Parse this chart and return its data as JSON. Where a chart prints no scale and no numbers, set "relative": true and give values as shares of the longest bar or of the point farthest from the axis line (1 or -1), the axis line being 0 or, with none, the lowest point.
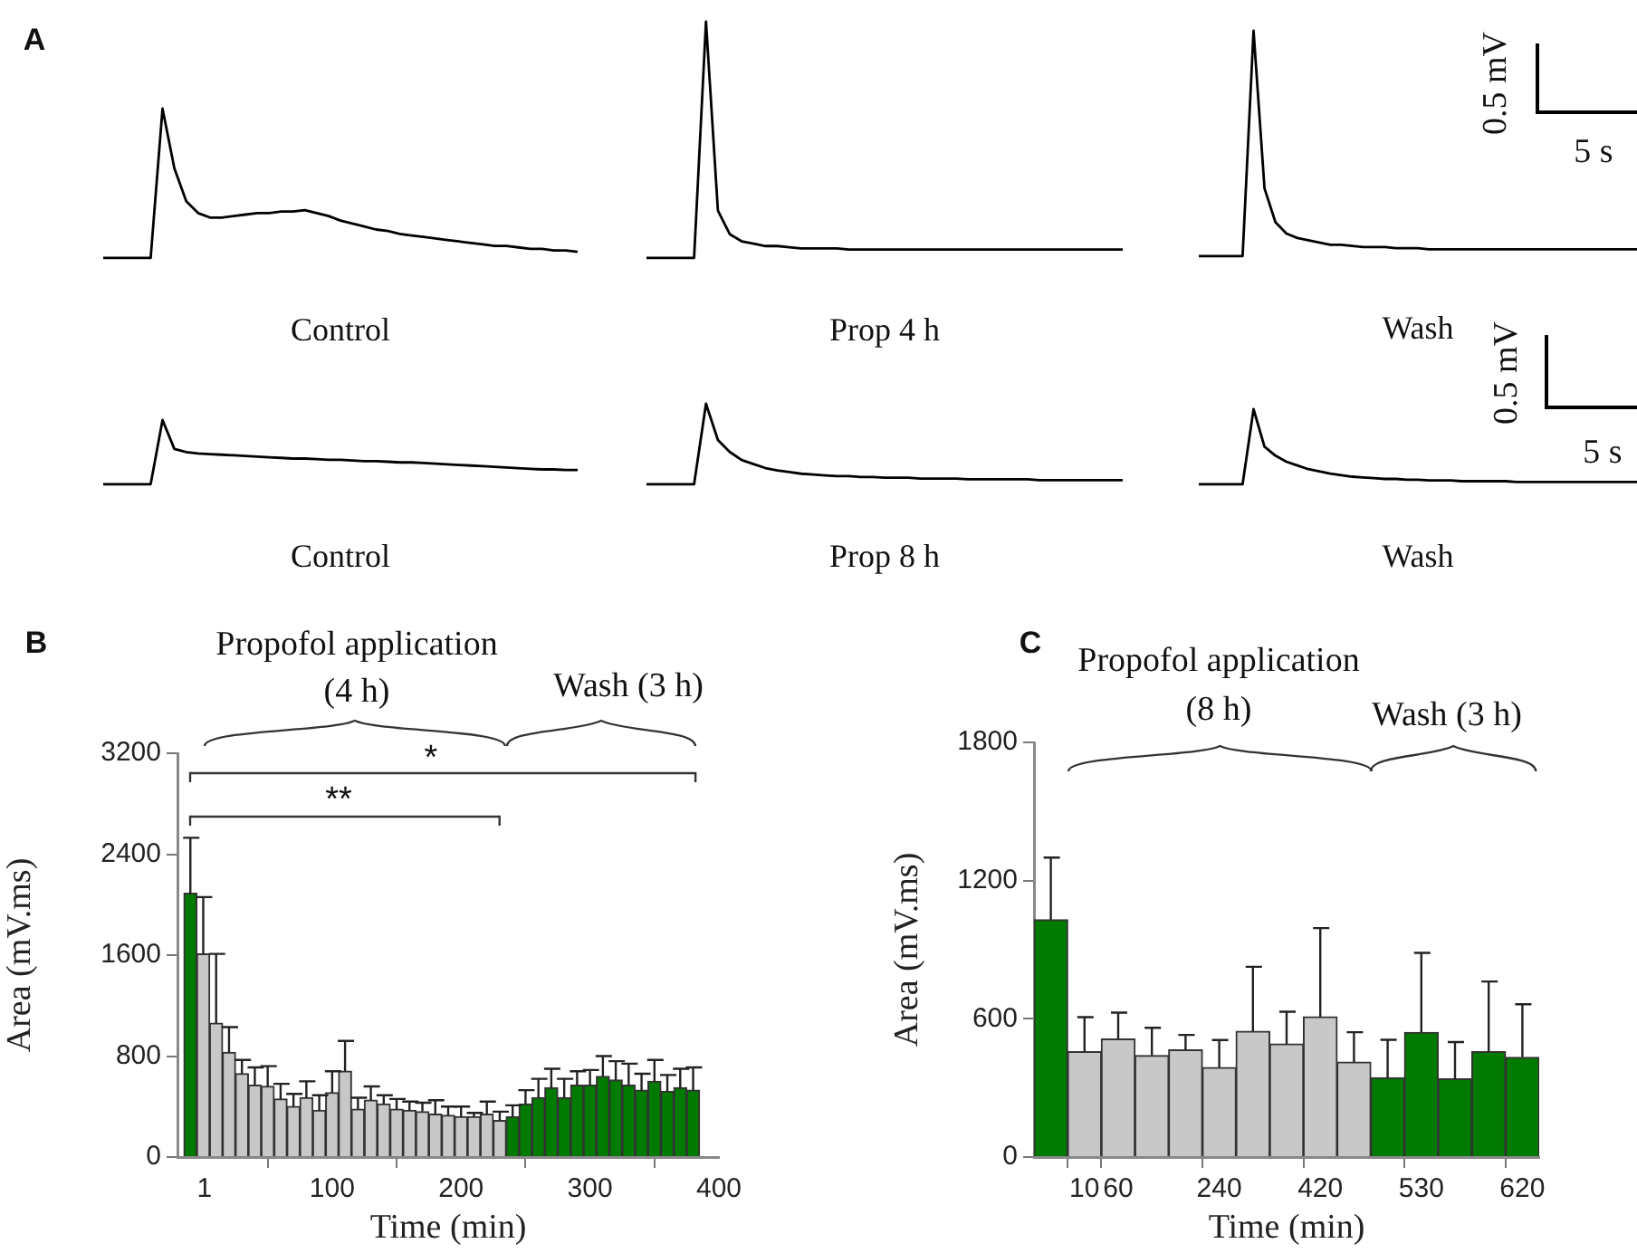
{
  "chart_data": [
    {
      "type": "line",
      "relative": true,
      "color": "#000000",
      "xlabel": "Control",
      "annotations": [
        "A"
      ],
      "categories": [
        null,
        null,
        null,
        null,
        null,
        null,
        null,
        null,
        null,
        null,
        null,
        null,
        null,
        null,
        null,
        null,
        null,
        null,
        null,
        null,
        null,
        null,
        null,
        null,
        null,
        null,
        null,
        null,
        null,
        null,
        null,
        null,
        null,
        null,
        null,
        null,
        null,
        null,
        null,
        null,
        null
      ],
      "values": [
        0,
        0,
        0,
        0,
        0,
        1,
        0.6,
        0.38,
        0.3,
        0.27,
        0.27,
        0.28,
        0.29,
        0.3,
        0.3,
        0.31,
        0.31,
        0.32,
        0.3,
        0.28,
        0.25,
        0.23,
        0.21,
        0.19,
        0.18,
        0.16,
        0.15,
        0.14,
        0.13,
        0.12,
        0.11,
        0.1,
        0.09,
        0.08,
        0.08,
        0.07,
        0.06,
        0.06,
        0.05,
        0.05,
        0.04
      ]
    },
    {
      "type": "line",
      "relative": true,
      "color": "#000000",
      "xlabel": "Prop 4 h",
      "categories": [
        null,
        null,
        null,
        null,
        null,
        null,
        null,
        null,
        null,
        null,
        null,
        null,
        null,
        null,
        null,
        null,
        null,
        null,
        null,
        null,
        null,
        null,
        null,
        null,
        null,
        null,
        null,
        null,
        null,
        null,
        null,
        null,
        null,
        null,
        null,
        null,
        null,
        null,
        null,
        null,
        null
      ],
      "values": [
        0,
        0,
        0,
        0,
        0,
        1,
        0.2,
        0.1,
        0.07,
        0.06,
        0.05,
        0.05,
        0.045,
        0.04,
        0.04,
        0.04,
        0.04,
        0.035,
        0.035,
        0.035,
        0.035,
        0.035,
        0.035,
        0.035,
        0.035,
        0.035,
        0.035,
        0.035,
        0.035,
        0.035,
        0.035,
        0.035,
        0.035,
        0.035,
        0.035,
        0.035,
        0.035,
        0.035,
        0.035,
        0.035,
        0.035
      ]
    },
    {
      "type": "line",
      "relative": true,
      "color": "#000000",
      "xlabel": "Wash",
      "annotations": [
        "0.5 mV",
        "5 s"
      ],
      "categories": [
        null,
        null,
        null,
        null,
        null,
        null,
        null,
        null,
        null,
        null,
        null,
        null,
        null,
        null,
        null,
        null,
        null,
        null,
        null,
        null,
        null,
        null,
        null,
        null,
        null,
        null,
        null,
        null,
        null,
        null,
        null,
        null,
        null,
        null,
        null,
        null,
        null,
        null,
        null,
        null,
        null
      ],
      "values": [
        0,
        0,
        0,
        0,
        0,
        1,
        0.3,
        0.15,
        0.1,
        0.08,
        0.07,
        0.06,
        0.05,
        0.05,
        0.045,
        0.04,
        0.04,
        0.04,
        0.035,
        0.035,
        0.035,
        0.03,
        0.03,
        0.03,
        0.03,
        0.03,
        0.03,
        0.03,
        0.03,
        0.03,
        0.03,
        0.03,
        0.03,
        0.03,
        0.03,
        0.03,
        0.03,
        0.03,
        0.03,
        0.03,
        0.03
      ]
    },
    {
      "type": "line",
      "relative": true,
      "color": "#000000",
      "xlabel": "Control",
      "categories": [
        null,
        null,
        null,
        null,
        null,
        null,
        null,
        null,
        null,
        null,
        null,
        null,
        null,
        null,
        null,
        null,
        null,
        null,
        null,
        null,
        null,
        null,
        null,
        null,
        null,
        null,
        null,
        null,
        null,
        null,
        null,
        null,
        null,
        null,
        null,
        null,
        null,
        null,
        null,
        null,
        null
      ],
      "values": [
        0,
        0,
        0,
        0,
        0,
        1,
        0.55,
        0.5,
        0.48,
        0.47,
        0.46,
        0.45,
        0.44,
        0.43,
        0.42,
        0.41,
        0.4,
        0.4,
        0.39,
        0.38,
        0.38,
        0.37,
        0.36,
        0.36,
        0.35,
        0.34,
        0.34,
        0.33,
        0.32,
        0.31,
        0.3,
        0.29,
        0.28,
        0.27,
        0.26,
        0.25,
        0.24,
        0.23,
        0.23,
        0.22,
        0.22
      ]
    },
    {
      "type": "line",
      "relative": true,
      "color": "#000000",
      "xlabel": "Prop 8 h",
      "categories": [
        null,
        null,
        null,
        null,
        null,
        null,
        null,
        null,
        null,
        null,
        null,
        null,
        null,
        null,
        null,
        null,
        null,
        null,
        null,
        null,
        null,
        null,
        null,
        null,
        null,
        null,
        null,
        null,
        null,
        null,
        null,
        null,
        null,
        null,
        null,
        null,
        null,
        null,
        null,
        null,
        null
      ],
      "values": [
        0,
        0,
        0,
        0,
        0,
        1,
        0.55,
        0.4,
        0.3,
        0.25,
        0.2,
        0.17,
        0.15,
        0.13,
        0.12,
        0.11,
        0.1,
        0.1,
        0.09,
        0.09,
        0.08,
        0.08,
        0.08,
        0.07,
        0.07,
        0.07,
        0.07,
        0.06,
        0.06,
        0.06,
        0.06,
        0.06,
        0.06,
        0.05,
        0.05,
        0.05,
        0.05,
        0.05,
        0.05,
        0.05,
        0.05
      ]
    },
    {
      "type": "line",
      "relative": true,
      "color": "#000000",
      "xlabel": "Wash",
      "annotations": [
        "0.5 mV",
        "5 s"
      ],
      "categories": [
        null,
        null,
        null,
        null,
        null,
        null,
        null,
        null,
        null,
        null,
        null,
        null,
        null,
        null,
        null,
        null,
        null,
        null,
        null,
        null,
        null,
        null,
        null,
        null,
        null,
        null,
        null,
        null,
        null,
        null,
        null,
        null,
        null,
        null,
        null,
        null,
        null,
        null,
        null,
        null,
        null
      ],
      "values": [
        0,
        0,
        0,
        0,
        0,
        1,
        0.5,
        0.38,
        0.3,
        0.25,
        0.2,
        0.17,
        0.14,
        0.12,
        0.1,
        0.09,
        0.08,
        0.07,
        0.07,
        0.06,
        0.06,
        0.05,
        0.05,
        0.05,
        0.04,
        0.04,
        0.04,
        0.04,
        0.04,
        0.03,
        0.03,
        0.03,
        0.03,
        0.03,
        0.03,
        0.03,
        0.03,
        0.03,
        0.03,
        0.03,
        0.03
      ]
    },
    {
      "type": "bar",
      "xlabel": "Time (min)",
      "ylabel": "Area (mV.ms)",
      "annotations": [
        "B",
        "Propofol application",
        "(4 h)",
        "Wash (3 h)",
        "*",
        "**"
      ],
      "x": [
        -10,
        0,
        10,
        20,
        30,
        40,
        50,
        60,
        70,
        80,
        90,
        100,
        110,
        120,
        130,
        140,
        150,
        160,
        170,
        180,
        190,
        200,
        210,
        220,
        230,
        240,
        250,
        260,
        270,
        280,
        290,
        300,
        310,
        320,
        330,
        340,
        350,
        360,
        370,
        380
      ],
      "values": [
        2090,
        1610,
        1060,
        830,
        660,
        570,
        560,
        460,
        400,
        470,
        370,
        510,
        680,
        380,
        450,
        420,
        380,
        370,
        360,
        340,
        330,
        320,
        320,
        340,
        290,
        320,
        420,
        470,
        550,
        470,
        570,
        570,
        640,
        610,
        570,
        530,
        600,
        520,
        550,
        530
      ],
      "errors": [
        440,
        450,
        550,
        200,
        110,
        140,
        160,
        120,
        100,
        130,
        120,
        170,
        240,
        90,
        110,
        70,
        80,
        70,
        70,
        110,
        70,
        80,
        30,
        100,
        70,
        90,
        110,
        150,
        150,
        150,
        110,
        120,
        160,
        150,
        170,
        130,
        170,
        130,
        150,
        180
      ],
      "colors": [
        "#007a00",
        "#c8c8c8",
        "#c8c8c8",
        "#c8c8c8",
        "#c8c8c8",
        "#c8c8c8",
        "#c8c8c8",
        "#c8c8c8",
        "#c8c8c8",
        "#c8c8c8",
        "#c8c8c8",
        "#c8c8c8",
        "#c8c8c8",
        "#c8c8c8",
        "#c8c8c8",
        "#c8c8c8",
        "#c8c8c8",
        "#c8c8c8",
        "#c8c8c8",
        "#c8c8c8",
        "#c8c8c8",
        "#c8c8c8",
        "#c8c8c8",
        "#c8c8c8",
        "#c8c8c8",
        "#007a00",
        "#007a00",
        "#007a00",
        "#007a00",
        "#007a00",
        "#007a00",
        "#007a00",
        "#007a00",
        "#007a00",
        "#007a00",
        "#007a00",
        "#007a00",
        "#007a00",
        "#007a00",
        "#007a00"
      ],
      "xlim": [
        -20,
        400
      ],
      "xticks": [
        1,
        100,
        200,
        300,
        400
      ],
      "ylim": [
        0,
        3200
      ],
      "yticks": [
        0,
        800,
        1600,
        2400,
        3200
      ]
    },
    {
      "type": "bar",
      "xlabel": "Time (min)",
      "ylabel": "Area (mV.ms)",
      "annotations": [
        "C",
        "Propofol application",
        "(8 h)",
        "Wash (3 h)"
      ],
      "categories": [
        null,
        "10",
        "60",
        null,
        null,
        "240",
        null,
        null,
        "420",
        null,
        null,
        "530",
        null,
        null,
        "620"
      ],
      "values": [
        1030,
        457,
        512,
        441,
        465,
        388,
        546,
        491,
        609,
        412,
        344,
        541,
        339,
        457,
        433
      ],
      "errors": [
        270,
        150,
        115,
        120,
        65,
        120,
        280,
        140,
        385,
        130,
        165,
        345,
        160,
        305,
        230
      ],
      "colors": [
        "#007a00",
        "#c8c8c8",
        "#c8c8c8",
        "#c8c8c8",
        "#c8c8c8",
        "#c8c8c8",
        "#c8c8c8",
        "#c8c8c8",
        "#c8c8c8",
        "#c8c8c8",
        "#007a00",
        "#007a00",
        "#007a00",
        "#007a00",
        "#007a00"
      ],
      "ylim": [
        0,
        1800
      ],
      "yticks": [
        0,
        600,
        1200,
        1800
      ]
    }
  ]
}
